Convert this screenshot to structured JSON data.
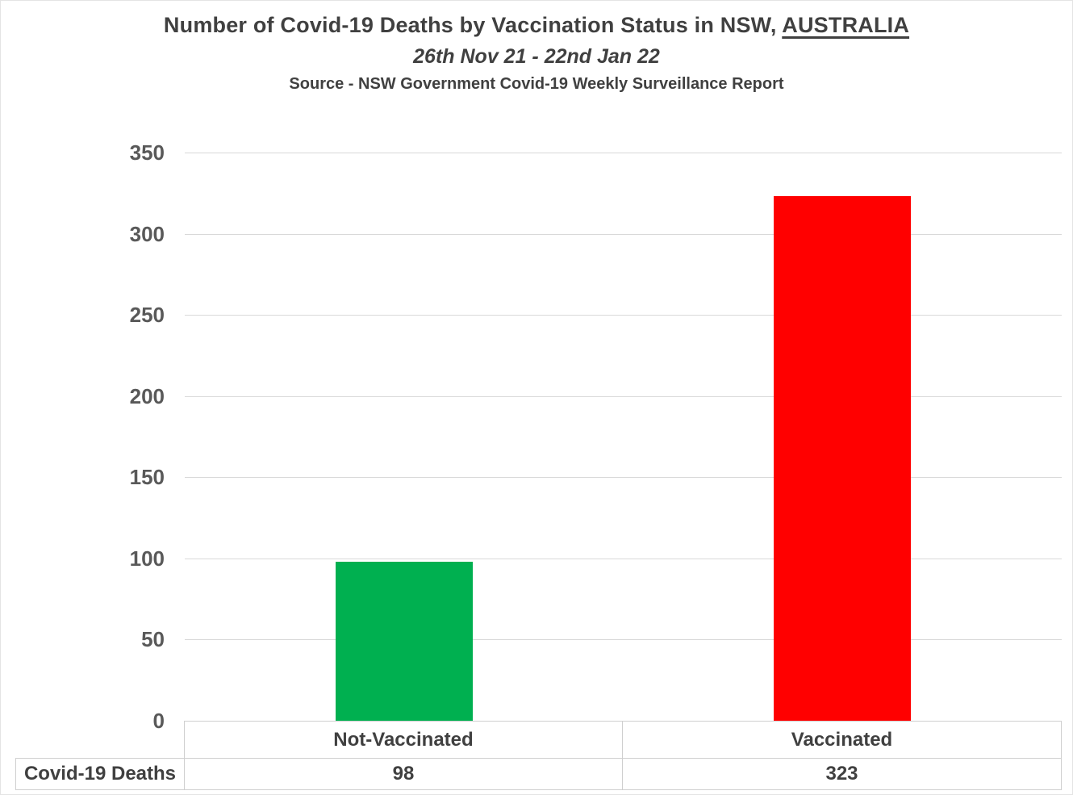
{
  "header": {
    "title_prefix": "Number of Covid-19 Deaths by Vaccination Status in NSW, ",
    "title_underlined": "AUSTRALIA",
    "subtitle": "26th Nov 21 - 22nd Jan 22",
    "source": "Source - NSW Government Covid-19 Weekly Surveillance Report"
  },
  "chart_data": {
    "type": "bar",
    "title": "Number of Covid-19 Deaths by Vaccination Status in NSW, AUSTRALIA",
    "subtitle": "26th Nov 21 - 22nd Jan 22",
    "source_note": "Source - NSW Government Covid-19 Weekly Surveillance Report",
    "categories": [
      "Not-Vaccinated",
      "Vaccinated"
    ],
    "values": [
      98,
      323
    ],
    "bar_colors": [
      "#00B050",
      "#FF0000"
    ],
    "ylim": [
      0,
      350
    ],
    "yticks": [
      0,
      50,
      100,
      150,
      200,
      250,
      300,
      350
    ],
    "grid": true,
    "gridline_color": "#D9D9D9",
    "legend_position": "none",
    "data_table": {
      "row_label": "Covid-19 Deaths"
    }
  },
  "colors": {
    "text_dark": "#404040",
    "tick_text": "#595959",
    "table_border": "#CFCFCF",
    "background": "#FFFFFF"
  }
}
